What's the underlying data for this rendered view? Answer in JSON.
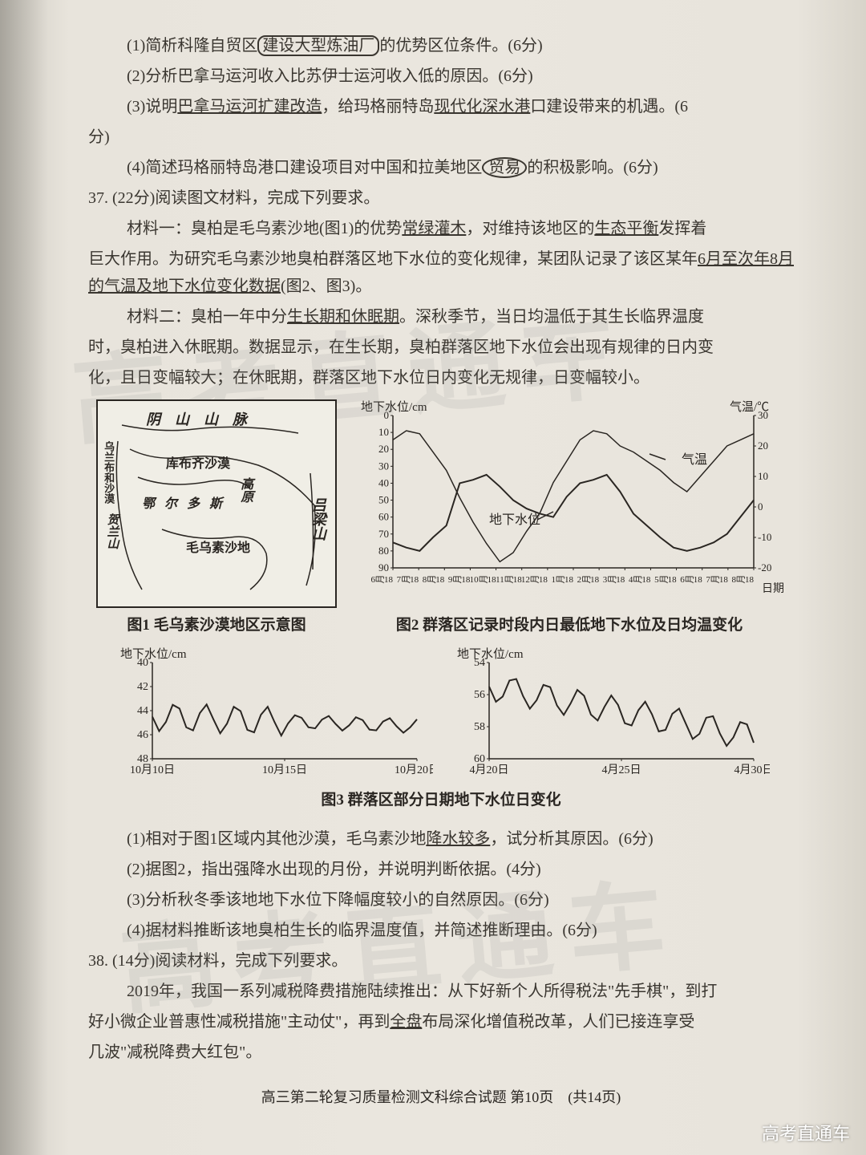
{
  "q36_1": "(1)简析科隆自贸区",
  "q36_1_box": "建设大型炼油厂",
  "q36_1_tail": "的优势区位条件。(6分)",
  "q36_2": "(2)分析巴拿马运河收入比苏伊士运河收入低的原因。(6分)",
  "q36_3a": "(3)说明",
  "q36_3b": "巴拿马运河扩建改造",
  "q36_3c": "，给玛格丽特岛",
  "q36_3d": "现代化深水港",
  "q36_3e": "口建设带来的机遇。(6",
  "q36_3f": "分)",
  "q36_4a": "(4)简述玛格丽特岛港口建设项目对中国和拉美地区",
  "q36_4b": "贸易",
  "q36_4c": "的积极影响。(6分)",
  "q37_head": "37. (22分)阅读图文材料，完成下列要求。",
  "mat1a": "材料一：臭柏是毛乌素沙地(图1)的优势",
  "mat1b": "常绿灌木",
  "mat1c": "，对维持该地区的",
  "mat1d": "生态平衡",
  "mat1e": "发挥着",
  "mat1f": "巨大作用。为研究毛乌素沙地臭柏群落区地下水位的变化规律，某团队记录了该区某年",
  "mat1g": "6月至次年8月的气温及地下水位变化数据",
  "mat1h": "(图2、图3)。",
  "mat2a": "材料二：臭柏一年中分",
  "mat2b": "生长期和休眠期",
  "mat2c": "。深秋季节，当日均温低于其生长临界温度",
  "mat2d": "时，臭柏进入休眠期。数据显示，在生长期，臭柏群落区地下水位会出现有规律的日内变",
  "mat2e": "化，且日变幅较大；在休眠期，群落区地下水位日内变化无规律，日变幅较小。",
  "fig1_caption": "图1 毛乌素沙漠地区示意图",
  "fig2_caption": "图2 群落区记录时段内日最低地下水位及日均温变化",
  "fig3_caption": "图3 群落区部分日期地下水位日变化",
  "map_labels": {
    "yin": "阴　山　山　脉",
    "kubuqi": "库布齐沙漠",
    "erdos": "鄂尔多斯",
    "gaoyuan": "高原",
    "maowusu": "毛乌素沙地",
    "lvliang": "吕梁山",
    "wulanbu": "乌兰布和沙漠",
    "helan": "贺兰山"
  },
  "chart1": {
    "y1_label": "地下水位/cm",
    "y2_label": "气温/℃",
    "y1_ticks": [
      0,
      10,
      20,
      30,
      40,
      50,
      60,
      70,
      80,
      90
    ],
    "y2_ticks": [
      30,
      20,
      10,
      0,
      -10,
      -20
    ],
    "x_ticks": [
      "6月18",
      "7月18",
      "8月18",
      "9月18",
      "10月18",
      "11月18",
      "12月18",
      "1月18",
      "2月18",
      "3月18",
      "4月18",
      "5月18",
      "6月18",
      "7月18",
      "8月18"
    ],
    "x_label": "日期",
    "legend1": "气温",
    "legend2": "地下水位"
  },
  "chart2": {
    "y_label": "地下水位/cm",
    "y_ticks": [
      40,
      42,
      44,
      46,
      48
    ],
    "x_ticks": [
      "10月10日",
      "10月15日",
      "10月20日"
    ]
  },
  "chart3": {
    "y_label": "地下水位/cm",
    "y_ticks": [
      54,
      56,
      58,
      60
    ],
    "x_ticks": [
      "4月20日",
      "4月25日",
      "4月30日"
    ]
  },
  "q37_1a": "(1)相对于图1区域内其他沙漠，毛乌素沙地",
  "q37_1b": "降水较多",
  "q37_1c": "，试分析其原因。(6分)",
  "q37_2": "(2)据图2，指出强降水出现的月份，并说明判断依据。(4分)",
  "q37_3": "(3)分析秋冬季该地地下水位下降幅度较小的自然原因。(6分)",
  "q37_4": "(4)据材料推断该地臭柏生长的临界温度值，并简述推断理由。(6分)",
  "q38_head": "38. (14分)阅读材料，完成下列要求。",
  "q38_body1": "2019年，我国一系列减税降费措施陆续推出：从下好新个人所得税法\"先手棋\"，到打",
  "q38_body2": "好小微企业普惠性减税措施\"主动仗\"，再到",
  "q38_body2u": "全盘",
  "q38_body2b": "布局深化增值税改革，人们已接连享受",
  "q38_body3": "几波\"减税降费大红包\"。",
  "footer": "高三第二轮复习质量检测文科综合试题 第10页　(共14页)",
  "watermark": "高考直通车"
}
